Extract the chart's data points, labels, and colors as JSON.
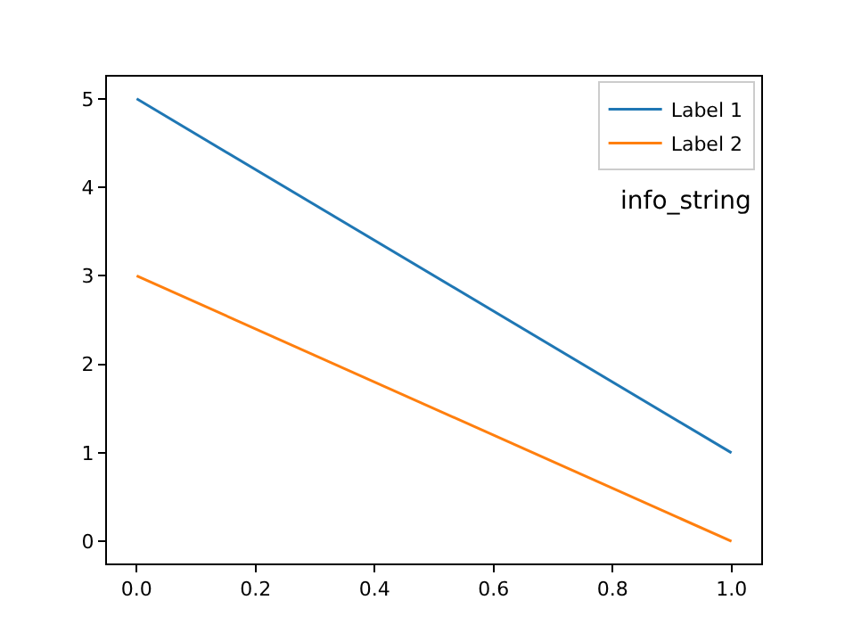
{
  "chart_data": {
    "type": "line",
    "x": [
      0,
      1
    ],
    "series": [
      {
        "name": "Label 1",
        "color": "#1f77b4",
        "values": [
          5,
          1
        ]
      },
      {
        "name": "Label 2",
        "color": "#ff7f0e",
        "values": [
          3,
          0
        ]
      }
    ],
    "annotations": [
      "info_string"
    ],
    "xlim": [
      -0.05,
      1.05
    ],
    "ylim": [
      -0.25,
      5.25
    ],
    "xticks": [
      {
        "value": 0,
        "label": "0.0"
      },
      {
        "value": 0.2,
        "label": "0.2"
      },
      {
        "value": 0.4,
        "label": "0.4"
      },
      {
        "value": 0.6,
        "label": "0.6"
      },
      {
        "value": 0.8,
        "label": "0.8"
      },
      {
        "value": 1,
        "label": "1.0"
      }
    ],
    "yticks": [
      0,
      1,
      2,
      3,
      4,
      5
    ],
    "legend": "top right",
    "marker": "none",
    "line_style": "solid"
  }
}
